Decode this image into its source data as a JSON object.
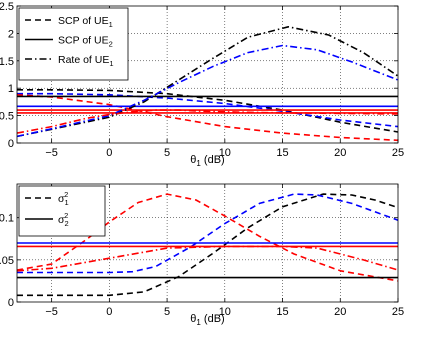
{
  "chart_data": [
    {
      "type": "line",
      "xlabel": "θ₁ (dB)",
      "ylabel": "",
      "xlim": [
        -8,
        25
      ],
      "ylim": [
        0,
        2.5
      ],
      "xticks": [
        -5,
        0,
        5,
        10,
        15,
        20,
        25
      ],
      "yticks": [
        0,
        0.5,
        1,
        1.5,
        2,
        2.5
      ],
      "grid": true,
      "legend": {
        "location": "top-left",
        "entries": [
          "SCP of UE₁",
          "SCP of UE₂",
          "Rate of UE₁"
        ],
        "styles": [
          "dashed",
          "solid",
          "dashdot"
        ]
      },
      "series": [
        {
          "color": "#000000",
          "style": "dashed",
          "x": [
            -8,
            -5,
            0,
            5,
            10,
            15,
            20,
            25
          ],
          "y": [
            0.97,
            0.97,
            0.96,
            0.9,
            0.78,
            0.6,
            0.38,
            0.2
          ]
        },
        {
          "color": "#0000ff",
          "style": "dashed",
          "x": [
            -8,
            -5,
            0,
            5,
            10,
            15,
            20,
            25
          ],
          "y": [
            0.9,
            0.9,
            0.88,
            0.82,
            0.72,
            0.58,
            0.42,
            0.3
          ]
        },
        {
          "color": "#ff0000",
          "style": "dashed",
          "x": [
            -8,
            -5,
            0,
            5,
            10,
            15,
            20,
            25
          ],
          "y": [
            0.88,
            0.84,
            0.7,
            0.48,
            0.3,
            0.18,
            0.1,
            0.05
          ]
        },
        {
          "color": "#000000",
          "style": "solid",
          "x": [
            -8,
            25
          ],
          "y": [
            0.85,
            0.85
          ]
        },
        {
          "color": "#0000ff",
          "style": "solid",
          "x": [
            -8,
            25
          ],
          "y": [
            0.67,
            0.67
          ]
        },
        {
          "color": "#ff0000",
          "style": "solid",
          "x": [
            -8,
            25
          ],
          "y": [
            0.6,
            0.6
          ]
        },
        {
          "color": "#ff0000",
          "style": "solid",
          "x": [
            -8,
            25
          ],
          "y": [
            0.55,
            0.55
          ]
        },
        {
          "color": "#000000",
          "style": "dashdot",
          "x": [
            -8,
            -5,
            0,
            3,
            6,
            9,
            12,
            15.5,
            19,
            22,
            25
          ],
          "y": [
            0.12,
            0.25,
            0.47,
            0.75,
            1.15,
            1.55,
            1.93,
            2.12,
            1.97,
            1.65,
            1.22
          ]
        },
        {
          "color": "#0000ff",
          "style": "dashdot",
          "x": [
            -8,
            -5,
            0,
            3,
            6,
            9,
            12,
            15,
            18,
            21,
            25
          ],
          "y": [
            0.12,
            0.26,
            0.5,
            0.78,
            1.1,
            1.4,
            1.65,
            1.78,
            1.7,
            1.48,
            1.15
          ]
        },
        {
          "color": "#ff0000",
          "style": "dashdot",
          "x": [
            -8,
            -5,
            -2,
            0,
            2,
            4,
            6,
            8,
            10,
            12,
            15,
            20,
            25
          ],
          "y": [
            0.18,
            0.3,
            0.45,
            0.52,
            0.57,
            0.6,
            0.6,
            0.58,
            0.57,
            0.56,
            0.55,
            0.54,
            0.53
          ]
        }
      ]
    },
    {
      "type": "line",
      "xlabel": "θ₁ (dB)",
      "ylabel": "",
      "xlim": [
        -8,
        25
      ],
      "ylim": [
        0,
        0.14
      ],
      "xticks": [
        -5,
        0,
        5,
        10,
        15,
        20,
        25
      ],
      "yticks": [
        0,
        0.05,
        0.1
      ],
      "grid": true,
      "legend": {
        "location": "top-left",
        "entries": [
          "σ₁²",
          "σ₂²"
        ],
        "styles": [
          "dashed",
          "solid"
        ]
      },
      "series": [
        {
          "color": "#000000",
          "style": "dashed",
          "x": [
            -8,
            -5,
            0,
            3,
            6,
            9,
            12,
            15,
            18.5,
            21,
            23,
            25
          ],
          "y": [
            0.008,
            0.008,
            0.008,
            0.012,
            0.03,
            0.058,
            0.088,
            0.113,
            0.128,
            0.127,
            0.121,
            0.112
          ]
        },
        {
          "color": "#0000ff",
          "style": "dashed",
          "x": [
            -8,
            -5,
            0,
            2,
            4,
            7,
            10,
            13,
            16,
            18,
            21,
            25
          ],
          "y": [
            0.035,
            0.035,
            0.035,
            0.036,
            0.042,
            0.065,
            0.093,
            0.117,
            0.128,
            0.127,
            0.117,
            0.097
          ]
        },
        {
          "color": "#ff0000",
          "style": "dashed",
          "x": [
            -8,
            -5,
            -2,
            0,
            2.5,
            5,
            7.5,
            10,
            13,
            16,
            20,
            25
          ],
          "y": [
            0.038,
            0.045,
            0.074,
            0.095,
            0.118,
            0.128,
            0.121,
            0.102,
            0.078,
            0.057,
            0.037,
            0.025
          ]
        },
        {
          "color": "#000000",
          "style": "solid",
          "x": [
            -8,
            25
          ],
          "y": [
            0.029,
            0.029
          ]
        },
        {
          "color": "#0000ff",
          "style": "solid",
          "x": [
            -8,
            25
          ],
          "y": [
            0.07,
            0.07
          ]
        },
        {
          "color": "#ff0000",
          "style": "solid",
          "x": [
            -8,
            25
          ],
          "y": [
            0.066,
            0.066
          ]
        },
        {
          "color": "#ff0000",
          "style": "dashdot",
          "x": [
            -8,
            -5,
            0,
            5,
            10,
            15,
            18,
            22,
            25
          ],
          "y": [
            0.037,
            0.04,
            0.052,
            0.064,
            0.066,
            0.066,
            0.064,
            0.05,
            0.038
          ]
        }
      ]
    }
  ]
}
